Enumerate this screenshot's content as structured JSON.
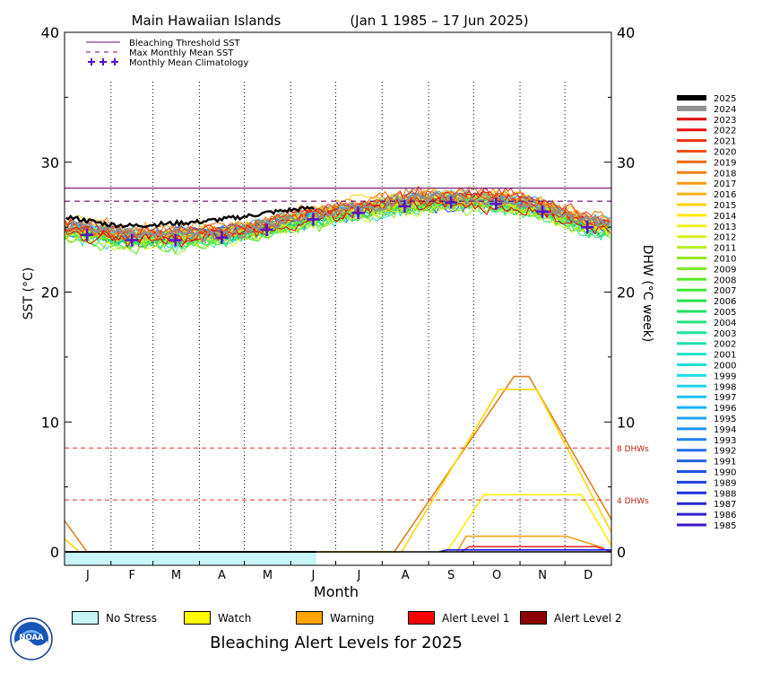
{
  "header": {
    "region": "Main Hawaiian Islands",
    "date_range": "(Jan 1 1985 – 17 Jun 2025)"
  },
  "legend_top": [
    {
      "label": "Bleaching Threshold SST",
      "style": "solid",
      "color": "#6a0a6a"
    },
    {
      "label": "Max Monthly Mean SST",
      "style": "dashed",
      "color": "#6a0a6a"
    },
    {
      "label": "Monthly Mean Climatology",
      "style": "cross",
      "color": "#5b0fc7"
    }
  ],
  "footer": {
    "title": "Bleaching Alert Levels for 2025",
    "alert_levels": [
      {
        "label": "No Stress",
        "color": "#c8f5f5"
      },
      {
        "label": "Watch",
        "color": "#ffff00"
      },
      {
        "label": "Warning",
        "color": "#ffa500"
      },
      {
        "label": "Alert Level 1",
        "color": "#ff0000"
      },
      {
        "label": "Alert Level 2",
        "color": "#8b0000"
      }
    ]
  },
  "logo": {
    "text": "NOAA"
  },
  "chart_data": {
    "type": "line",
    "xlabel": "Month",
    "ylabel_left": "SST (°C)",
    "ylabel_right": "DHW (°C week)",
    "ylim": [
      0,
      40
    ],
    "yticks": [
      0,
      10,
      20,
      30,
      40
    ],
    "x_ticks": [
      "J",
      "F",
      "M",
      "A",
      "M",
      "J",
      "J",
      "A",
      "S",
      "O",
      "N",
      "D"
    ],
    "bleaching_threshold_sst": 28.0,
    "max_monthly_mean_sst": 27.0,
    "dhw_reference_lines": [
      {
        "value": 8,
        "label": "8 DHWs"
      },
      {
        "value": 4,
        "label": "4 DHWs"
      }
    ],
    "monthly_mean_climatology": [
      24.4,
      24.0,
      24.0,
      24.2,
      24.8,
      25.6,
      26.1,
      26.6,
      26.9,
      26.8,
      26.2,
      25.0
    ],
    "sst_2025": {
      "day": [
        1,
        15,
        30,
        45,
        60,
        75,
        90,
        105,
        120,
        135,
        150,
        168
      ],
      "sst": [
        25.8,
        25.5,
        25.2,
        25.1,
        25.2,
        25.3,
        25.4,
        25.6,
        25.8,
        26.1,
        26.3,
        26.5
      ]
    },
    "dhw_2025": {
      "day": [
        1,
        168
      ],
      "dhw": [
        0,
        0
      ]
    },
    "dhw_notable": [
      {
        "color": "#e08020",
        "day": [
          0,
          15,
          220,
          300,
          310,
          365
        ],
        "dhw": [
          2.4,
          0,
          0,
          13.5,
          13.5,
          2.5
        ]
      },
      {
        "color": "#ffd700",
        "day": [
          0,
          10,
          225,
          290,
          315,
          365
        ],
        "dhw": [
          1.0,
          0,
          0,
          12.5,
          12.5,
          1.5
        ]
      },
      {
        "color": "#ffee00",
        "day": [
          255,
          280,
          345,
          365
        ],
        "dhw": [
          0,
          4.4,
          4.4,
          0.5
        ]
      },
      {
        "color": "#f0a020",
        "day": [
          262,
          268,
          335,
          360
        ],
        "dhw": [
          0,
          1.2,
          1.2,
          0.3
        ]
      },
      {
        "color": "#e83030",
        "day": [
          265,
          270,
          355,
          365
        ],
        "dhw": [
          0,
          0.4,
          0.4,
          0
        ]
      },
      {
        "color": "#2020ff",
        "day": [
          250,
          255,
          365
        ],
        "dhw": [
          0,
          0.15,
          0.15
        ]
      }
    ],
    "series": [
      {
        "name": "2025",
        "color": "#000000"
      },
      {
        "name": "2024",
        "color": "#909090"
      },
      {
        "name": "2023",
        "color": "#e00000"
      },
      {
        "name": "2022",
        "color": "#e81010"
      },
      {
        "name": "2021",
        "color": "#ee3010"
      },
      {
        "name": "2020",
        "color": "#f05010"
      },
      {
        "name": "2019",
        "color": "#f06a10"
      },
      {
        "name": "2018",
        "color": "#f08018"
      },
      {
        "name": "2017",
        "color": "#f49a18"
      },
      {
        "name": "2016",
        "color": "#f8b418"
      },
      {
        "name": "2015",
        "color": "#ffd000"
      },
      {
        "name": "2014",
        "color": "#ffe800"
      },
      {
        "name": "2013",
        "color": "#f0f020"
      },
      {
        "name": "2012",
        "color": "#d8f020"
      },
      {
        "name": "2011",
        "color": "#b8ec20"
      },
      {
        "name": "2010",
        "color": "#98e820"
      },
      {
        "name": "2009",
        "color": "#78e820"
      },
      {
        "name": "2008",
        "color": "#58e828"
      },
      {
        "name": "2007",
        "color": "#38e838"
      },
      {
        "name": "2006",
        "color": "#28e050"
      },
      {
        "name": "2005",
        "color": "#20e068"
      },
      {
        "name": "2004",
        "color": "#20e080"
      },
      {
        "name": "2003",
        "color": "#20e098"
      },
      {
        "name": "2002",
        "color": "#20e0b0"
      },
      {
        "name": "2001",
        "color": "#20e0c4"
      },
      {
        "name": "2000",
        "color": "#20e0d8"
      },
      {
        "name": "1999",
        "color": "#20dce8"
      },
      {
        "name": "1998",
        "color": "#20d0f0"
      },
      {
        "name": "1997",
        "color": "#20c0f0"
      },
      {
        "name": "1996",
        "color": "#20b0f0"
      },
      {
        "name": "1995",
        "color": "#20a0f0"
      },
      {
        "name": "1994",
        "color": "#2090f0"
      },
      {
        "name": "1993",
        "color": "#2080f0"
      },
      {
        "name": "1992",
        "color": "#2070ec"
      },
      {
        "name": "1991",
        "color": "#2060e8"
      },
      {
        "name": "1990",
        "color": "#2050e4"
      },
      {
        "name": "1989",
        "color": "#2040e0"
      },
      {
        "name": "1988",
        "color": "#2030d8"
      },
      {
        "name": "1987",
        "color": "#2828d0"
      },
      {
        "name": "1986",
        "color": "#3020c8"
      },
      {
        "name": "1985",
        "color": "#4018c8"
      }
    ]
  }
}
